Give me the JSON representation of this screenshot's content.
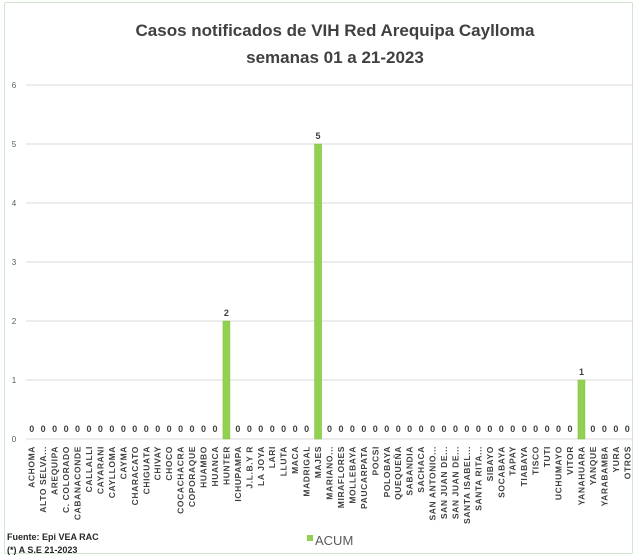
{
  "chart_data": {
    "type": "bar",
    "title": "Casos notificados de VIH Red Arequipa Caylloma",
    "subtitle": "semanas 01 a 21-2023",
    "xlabel": "",
    "ylabel": "",
    "ylim": [
      0,
      6
    ],
    "yticks": [
      "0",
      "1",
      "2",
      "3",
      "4",
      "5",
      "6"
    ],
    "grid": true,
    "legend": "bottom",
    "categories": [
      "ACHOMA",
      "ALTO SELVA...",
      "AREQUIPA",
      "C. COLORADO",
      "CABANACONDE",
      "CALLALLI",
      "CAYARANI",
      "CAYLLOMA",
      "CAYMA",
      "CHARACATO",
      "CHIGUATA",
      "CHIVAY",
      "CHOCO",
      "COCACHACRA",
      "COPORAQUE",
      "HUAMBO",
      "HUANCA",
      "HUNTER",
      "ICHUPAMPA",
      "J.L.B.Y R",
      "LA JOYA",
      "LARI",
      "LLUTA",
      "MACA",
      "MADRIGAL",
      "MAJES",
      "MARIANO...",
      "MIRAFLORES",
      "MOLLEBAYA",
      "PAUCARPATA",
      "POCSI",
      "POLOBAYA",
      "QUEQUEÑA",
      "SABANDIA",
      "SACHACA",
      "SAN ANTONIO...",
      "SAN JUAN DE...",
      "SAN JUAN DE...",
      "SANTA ISABEL...",
      "SANTA RITA...",
      "SIBAYO",
      "SOCABAYA",
      "TAPAY",
      "TIABAYA",
      "TISCO",
      "TUTI",
      "UCHUMAYO",
      "VITOR",
      "YANAHUARA",
      "YANQUE",
      "YARABAMBA",
      "YURA",
      "OTROS"
    ],
    "series": [
      {
        "name": "ACUM",
        "color": "#92d050",
        "values": [
          0,
          0,
          0,
          0,
          0,
          0,
          0,
          0,
          0,
          0,
          0,
          0,
          0,
          0,
          0,
          0,
          0,
          2,
          0,
          0,
          0,
          0,
          0,
          0,
          0,
          5,
          0,
          0,
          0,
          0,
          0,
          0,
          0,
          0,
          0,
          0,
          0,
          0,
          0,
          0,
          0,
          0,
          0,
          0,
          0,
          0,
          0,
          0,
          1,
          0,
          0,
          0,
          0
        ]
      }
    ]
  },
  "footer": {
    "source": "Fuente: Epi VEA RAC",
    "note": "(*) A S.E 21-2023"
  }
}
